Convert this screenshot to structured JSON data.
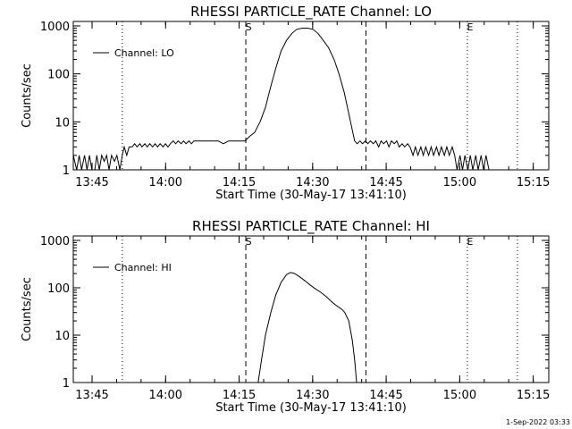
{
  "footer": {
    "timestamp": "1-Sep-2022 03:33"
  },
  "chart_data": [
    {
      "type": "line",
      "title": "RHESSI PARTICLE_RATE Channel: LO",
      "xlabel": "Start Time (30-May-17 13:41:10)",
      "ylabel": "Counts/sec",
      "yscale": "log",
      "xlim_minutes_after_start": [
        0,
        97
      ],
      "ylim": [
        1,
        1000
      ],
      "x_ticks": [
        "13:45",
        "14:00",
        "14:15",
        "14:30",
        "14:45",
        "15:00",
        "15:15"
      ],
      "y_ticks": [
        "1",
        "10",
        "100",
        "1000"
      ],
      "legend": {
        "entry": "Channel: LO",
        "position": "top-left"
      },
      "markers": [
        {
          "label": "S",
          "style": "dashed",
          "x": 35.2
        },
        {
          "label": "",
          "style": "dashed",
          "x": 59.7
        },
        {
          "label": "E",
          "style": "dotted",
          "x": 80.4
        }
      ],
      "dotted_lines": [
        10.0,
        90.6
      ],
      "series": [
        {
          "values": [
            [
              0,
              2
            ],
            [
              0.7,
              1
            ],
            [
              1.2,
              2
            ],
            [
              1.7,
              1
            ],
            [
              2.3,
              2
            ],
            [
              2.8,
              1
            ],
            [
              3.3,
              2
            ],
            [
              3.8,
              1
            ],
            [
              4.4,
              1
            ],
            [
              4.8,
              2
            ],
            [
              5.3,
              1
            ],
            [
              5.8,
              2
            ],
            [
              6.3,
              1.5
            ],
            [
              6.8,
              2
            ],
            [
              7.3,
              1
            ],
            [
              7.8,
              2
            ],
            [
              8.4,
              1.5
            ],
            [
              8.9,
              2
            ],
            [
              9.5,
              1
            ],
            [
              10,
              2
            ],
            [
              10.4,
              3
            ],
            [
              10.9,
              2
            ],
            [
              11.4,
              3
            ],
            [
              12,
              3
            ],
            [
              12.5,
              3.5
            ],
            [
              13,
              3
            ],
            [
              13.6,
              3.5
            ],
            [
              14,
              3
            ],
            [
              14.6,
              3.5
            ],
            [
              15.1,
              3
            ],
            [
              15.6,
              3.5
            ],
            [
              16.2,
              3
            ],
            [
              16.7,
              3.5
            ],
            [
              17.2,
              3
            ],
            [
              17.7,
              3.5
            ],
            [
              18.3,
              3
            ],
            [
              18.8,
              3.5
            ],
            [
              19.3,
              3
            ],
            [
              19.8,
              3.5
            ],
            [
              20.4,
              4
            ],
            [
              20.9,
              3.5
            ],
            [
              21.4,
              4
            ],
            [
              22,
              3.5
            ],
            [
              22.5,
              4
            ],
            [
              23,
              3.5
            ],
            [
              23.6,
              4
            ],
            [
              24.1,
              3.5
            ],
            [
              24.6,
              4
            ],
            [
              25.3,
              4
            ],
            [
              26.3,
              4
            ],
            [
              27.4,
              4
            ],
            [
              28.5,
              4
            ],
            [
              29.6,
              4
            ],
            [
              30.6,
              3.5
            ],
            [
              31.7,
              4
            ],
            [
              32.8,
              4
            ],
            [
              33.9,
              4
            ],
            [
              35,
              4
            ],
            [
              36,
              5
            ],
            [
              37,
              6
            ],
            [
              38.1,
              10
            ],
            [
              39.2,
              20
            ],
            [
              40.3,
              55
            ],
            [
              41.3,
              130
            ],
            [
              42.4,
              300
            ],
            [
              43.5,
              500
            ],
            [
              44.6,
              700
            ],
            [
              45.6,
              850
            ],
            [
              46.7,
              900
            ],
            [
              47.8,
              900
            ],
            [
              48.9,
              850
            ],
            [
              49.9,
              700
            ],
            [
              51,
              500
            ],
            [
              52.1,
              350
            ],
            [
              53.2,
              200
            ],
            [
              54.2,
              100
            ],
            [
              55.3,
              40
            ],
            [
              56.4,
              12
            ],
            [
              57.4,
              4
            ],
            [
              57.9,
              3.5
            ],
            [
              58.5,
              4
            ],
            [
              59,
              3.5
            ],
            [
              59.6,
              4
            ],
            [
              60.1,
              3.5
            ],
            [
              60.6,
              4
            ],
            [
              61.2,
              3.5
            ],
            [
              61.7,
              4
            ],
            [
              62.3,
              3
            ],
            [
              62.8,
              4
            ],
            [
              63.3,
              3.5
            ],
            [
              63.9,
              4
            ],
            [
              64.4,
              3
            ],
            [
              64.9,
              4
            ],
            [
              65.5,
              3.5
            ],
            [
              66,
              4
            ],
            [
              66.5,
              3
            ],
            [
              67.1,
              3.5
            ],
            [
              67.6,
              3
            ],
            [
              68.2,
              3.5
            ],
            [
              68.7,
              3
            ],
            [
              69.3,
              2
            ],
            [
              69.8,
              3
            ],
            [
              70.3,
              2
            ],
            [
              70.9,
              3
            ],
            [
              71.4,
              2
            ],
            [
              71.9,
              3
            ],
            [
              72.5,
              2
            ],
            [
              73,
              3
            ],
            [
              73.5,
              2
            ],
            [
              74.1,
              3
            ],
            [
              74.6,
              2
            ],
            [
              75.1,
              3
            ],
            [
              75.7,
              2
            ],
            [
              76.2,
              3
            ],
            [
              76.7,
              2
            ],
            [
              77.3,
              3
            ],
            [
              77.8,
              2
            ],
            [
              78.3,
              1
            ],
            [
              78.9,
              2
            ],
            [
              79.4,
              1
            ],
            [
              79.9,
              2
            ],
            [
              80.5,
              1
            ],
            [
              81,
              2
            ],
            [
              81.5,
              1
            ],
            [
              82.1,
              2
            ],
            [
              82.6,
              1
            ],
            [
              83.2,
              2
            ],
            [
              83.7,
              1
            ],
            [
              84.2,
              2
            ],
            [
              84.8,
              1
            ],
            [
              85.3,
              1
            ]
          ]
        }
      ]
    },
    {
      "type": "line",
      "title": "RHESSI PARTICLE_RATE Channel: HI",
      "xlabel": "Start Time (30-May-17 13:41:10)",
      "ylabel": "Counts/sec",
      "yscale": "log",
      "xlim_minutes_after_start": [
        0,
        97
      ],
      "ylim": [
        1,
        1000
      ],
      "x_ticks": [
        "13:45",
        "14:00",
        "14:15",
        "14:30",
        "14:45",
        "15:00",
        "15:15"
      ],
      "y_ticks": [
        "1",
        "10",
        "100",
        "1000"
      ],
      "legend": {
        "entry": "Channel: HI",
        "position": "top-left"
      },
      "markers": [
        {
          "label": "S",
          "style": "dashed",
          "x": 35.2
        },
        {
          "label": "",
          "style": "dashed",
          "x": 59.7
        },
        {
          "label": "E",
          "style": "dotted",
          "x": 80.4
        }
      ],
      "dotted_lines": [
        10.0,
        90.6
      ],
      "series": [
        {
          "values": [
            [
              37.7,
              1
            ],
            [
              38.4,
              3
            ],
            [
              39.2,
              10
            ],
            [
              40.3,
              30
            ],
            [
              41.3,
              70
            ],
            [
              42.4,
              130
            ],
            [
              43.5,
              190
            ],
            [
              44.3,
              210
            ],
            [
              45.1,
              200
            ],
            [
              46.2,
              170
            ],
            [
              47.3,
              140
            ],
            [
              48.3,
              115
            ],
            [
              49.4,
              95
            ],
            [
              50.5,
              80
            ],
            [
              51.6,
              65
            ],
            [
              52.6,
              52
            ],
            [
              53.7,
              42
            ],
            [
              54.8,
              35
            ],
            [
              55.4,
              30
            ],
            [
              56.2,
              20
            ],
            [
              56.9,
              8
            ],
            [
              57.4,
              3
            ],
            [
              57.8,
              1
            ]
          ]
        }
      ]
    }
  ]
}
